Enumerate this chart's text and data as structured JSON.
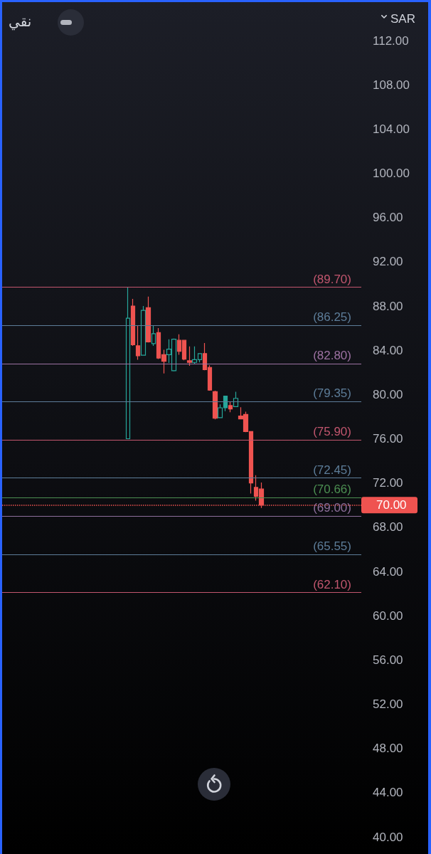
{
  "chart_data": {
    "type": "candlestick",
    "categories": [
      null,
      null,
      null,
      null,
      null,
      null,
      null,
      null,
      null,
      null,
      null,
      null,
      null,
      null,
      null,
      null,
      null,
      null,
      null,
      null,
      null,
      null,
      null,
      null,
      null,
      null,
      null,
      null,
      null,
      null,
      null,
      null,
      null,
      null,
      null,
      null,
      null,
      null,
      null,
      null,
      null,
      null,
      null,
      null,
      null,
      null,
      null,
      null,
      null,
      null,
      null,
      null,
      null,
      null,
      null,
      null,
      null,
      null,
      null,
      null,
      null,
      null,
      null,
      null,
      null,
      null,
      null,
      null,
      null,
      null
    ],
    "ohlc": [
      null,
      null,
      null,
      null,
      null,
      null,
      null,
      null,
      null,
      null,
      null,
      null,
      null,
      null,
      null,
      null,
      null,
      null,
      null,
      null,
      null,
      null,
      null,
      null,
      [
        76.0,
        89.7,
        76.0,
        86.9
      ],
      [
        88.0,
        88.65,
        84.4,
        84.5
      ],
      [
        84.4,
        86.2,
        83.15,
        83.5
      ],
      [
        83.55,
        88.0,
        83.55,
        87.6
      ],
      [
        87.85,
        88.85,
        84.7,
        84.75
      ],
      [
        84.6,
        86.2,
        84.4,
        85.5
      ],
      [
        85.6,
        86.0,
        83.2,
        83.3
      ],
      [
        83.6,
        84.05,
        81.9,
        83.0
      ],
      [
        83.6,
        85.0,
        82.85,
        84.1
      ],
      [
        82.15,
        85.05,
        82.1,
        85.0
      ],
      [
        84.9,
        85.45,
        83.6,
        83.9
      ],
      [
        84.9,
        84.9,
        83.1,
        83.2
      ],
      [
        83.05,
        84.35,
        82.6,
        82.9
      ],
      [
        82.9,
        84.35,
        82.75,
        83.15
      ],
      [
        83.15,
        83.7,
        82.9,
        83.7
      ],
      [
        83.7,
        84.65,
        82.2,
        82.25
      ],
      [
        82.45,
        82.65,
        80.35,
        80.4
      ],
      [
        80.25,
        80.35,
        77.75,
        77.85
      ],
      [
        77.9,
        79.1,
        77.9,
        78.8
      ],
      [
        79.85,
        79.85,
        78.5,
        78.8
      ],
      [
        79.0,
        79.35,
        78.4,
        78.7
      ],
      [
        78.9,
        80.25,
        78.9,
        79.65
      ],
      [
        78.05,
        78.85,
        77.8,
        77.8
      ],
      [
        78.2,
        78.45,
        76.6,
        76.65
      ],
      [
        76.65,
        76.65,
        71.05,
        72.0
      ],
      [
        71.6,
        72.7,
        70.4,
        70.8
      ],
      [
        71.45,
        72.05,
        69.75,
        70.0
      ],
      null,
      null,
      null,
      null,
      null,
      null,
      null,
      null,
      null,
      null,
      null,
      null,
      null,
      null,
      null,
      null,
      null,
      null,
      null
    ],
    "colors": [
      null,
      null,
      null,
      null,
      null,
      null,
      null,
      null,
      null,
      null,
      null,
      null,
      null,
      null,
      null,
      null,
      null,
      null,
      null,
      null,
      null,
      null,
      null,
      null,
      "#26a69a",
      "#ef5350",
      "#ef5350",
      "#26a69a",
      "#ef5350",
      "#26a69a",
      "#ef5350",
      "#ef5350",
      "#26a69a",
      "#26a69a",
      "#ef5350",
      "#ef5350",
      "#ef5350",
      "#26a69a",
      "#26a69a",
      "#ef5350",
      "#ef5350",
      "#ef5350",
      "#26a69a",
      "#26a69a",
      "#ef5350",
      "#26a69a",
      "#ef5350",
      "#ef5350",
      "#ef5350",
      "#ef5350",
      "#ef5350",
      null,
      null,
      null,
      null,
      null,
      null,
      null,
      null,
      null,
      null,
      null,
      null,
      null,
      null,
      null,
      null,
      null,
      null,
      null
    ],
    "ylabel": "SAR",
    "ylim": [
      40,
      112
    ],
    "yticks": [
      {
        "value": 40,
        "label": "40.00"
      },
      {
        "value": 44,
        "label": "44.00"
      },
      {
        "value": 48,
        "label": "48.00"
      },
      {
        "value": 52,
        "label": "52.00"
      },
      {
        "value": 56,
        "label": "56.00"
      },
      {
        "value": 60,
        "label": "60.00"
      },
      {
        "value": 64,
        "label": "64.00"
      },
      {
        "value": 68,
        "label": "68.00"
      },
      {
        "value": 72,
        "label": "72.00"
      },
      {
        "value": 76,
        "label": "76.00"
      },
      {
        "value": 80,
        "label": "80.00"
      },
      {
        "value": 84,
        "label": "84.00"
      },
      {
        "value": 88,
        "label": "88.00"
      },
      {
        "value": 92,
        "label": "92.00"
      },
      {
        "value": 96,
        "label": "96.00"
      },
      {
        "value": 100,
        "label": "100.00"
      },
      {
        "value": 104,
        "label": "104.00"
      },
      {
        "value": 108,
        "label": "108.00"
      },
      {
        "value": 112,
        "label": "112.00"
      }
    ],
    "ref_lines": [
      {
        "axis": "y",
        "value": 89.7,
        "label": "(89.70)",
        "color": "#c2566e"
      },
      {
        "axis": "y",
        "value": 86.25,
        "label": "(86.25)",
        "color": "#5d7d99"
      },
      {
        "axis": "y",
        "value": 82.8,
        "label": "(82.80)",
        "color": "#9e72a3"
      },
      {
        "axis": "y",
        "value": 79.35,
        "label": "(79.35)",
        "color": "#5d7d99"
      },
      {
        "axis": "y",
        "value": 75.9,
        "label": "(75.90)",
        "color": "#c2566e"
      },
      {
        "axis": "y",
        "value": 72.45,
        "label": "(72.45)",
        "color": "#5d7d99"
      },
      {
        "axis": "y",
        "value": 70.66,
        "label": "(70.66)",
        "color": "#4c8f52"
      },
      {
        "axis": "y",
        "value": 69.0,
        "label": "(69.00)",
        "color": "#8e6f9c"
      },
      {
        "axis": "y",
        "value": 65.55,
        "label": "(65.55)",
        "color": "#5d7d99"
      },
      {
        "axis": "y",
        "value": 62.1,
        "label": "(62.10)",
        "color": "#c2566e"
      },
      {
        "axis": "y",
        "value": 70.0,
        "label": "70.00",
        "color": "#ef5350",
        "line_style": "dotted"
      }
    ],
    "annotations": [
      "نقي"
    ]
  }
}
